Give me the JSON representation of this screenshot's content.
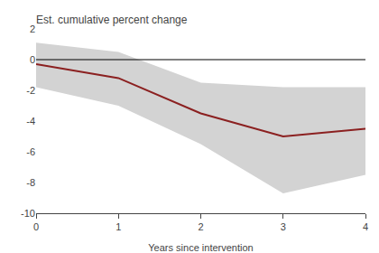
{
  "chart_data": {
    "type": "line",
    "title": "Est. cumulative percent change",
    "xlabel": "Years since intervention",
    "x": [
      0,
      1,
      2,
      3,
      4
    ],
    "series": [
      {
        "type": "band",
        "color": "#d3d3d3",
        "lower": [
          -1.8,
          -3.0,
          -5.5,
          -8.7,
          -7.5
        ],
        "upper": [
          1.1,
          0.5,
          -1.5,
          -1.8,
          -1.8
        ]
      },
      {
        "type": "hline",
        "color": "#000000",
        "y": 0
      },
      {
        "type": "line",
        "color": "#8b2020",
        "values": [
          -0.3,
          -1.2,
          -3.5,
          -5.0,
          -4.5
        ]
      }
    ],
    "xlim": [
      0,
      4
    ],
    "ylim": [
      -10,
      2
    ],
    "xticks": [
      0,
      1,
      2,
      3,
      4
    ],
    "yticks": [
      -10,
      -8,
      -6,
      -4,
      -2,
      0,
      2
    ],
    "background_color": "#ffffff",
    "grid": false
  }
}
